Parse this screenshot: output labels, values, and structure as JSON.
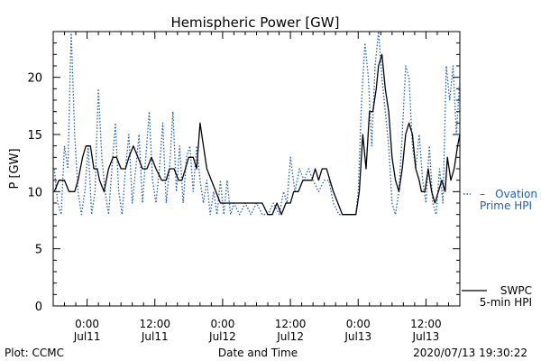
{
  "chart_data": {
    "type": "line",
    "title": "Hemispheric Power [GW]",
    "ylabel": "P [GW]",
    "xlabel": "Date and Time",
    "ylim": [
      0,
      24
    ],
    "xlim": [
      -3,
      33
    ],
    "y_ticks": [
      0,
      5,
      10,
      15,
      20
    ],
    "x_ticks": [
      {
        "x": 0,
        "line1": "0:00",
        "line2": "Jul11"
      },
      {
        "x": 6,
        "line1": "12:00",
        "line2": "Jul11"
      },
      {
        "x": 12,
        "line1": "0:00",
        "line2": "Jul12"
      },
      {
        "x": 18,
        "line1": "12:00",
        "line2": "Jul12"
      },
      {
        "x": 24,
        "line1": "0:00",
        "line2": "Jul13"
      },
      {
        "x": 30,
        "line1": "12:00",
        "line2": "Jul13"
      }
    ],
    "x_unit": "hours since 0:00 Jul11",
    "series": [
      {
        "name": "SWPC 5-min HPI",
        "color": "#000000",
        "style": "solid",
        "points": [
          [
            -2.9,
            10
          ],
          [
            -2.5,
            11
          ],
          [
            -2.0,
            11
          ],
          [
            -1.6,
            10
          ],
          [
            -1.1,
            10
          ],
          [
            -0.8,
            11
          ],
          [
            -0.4,
            13
          ],
          [
            -0.1,
            14
          ],
          [
            0.3,
            14
          ],
          [
            0.6,
            12
          ],
          [
            0.9,
            12
          ],
          [
            1.1,
            11
          ],
          [
            1.5,
            10
          ],
          [
            1.9,
            12
          ],
          [
            2.3,
            13
          ],
          [
            2.6,
            13
          ],
          [
            3.0,
            12
          ],
          [
            3.4,
            12
          ],
          [
            3.7,
            13
          ],
          [
            4.1,
            14
          ],
          [
            4.5,
            13
          ],
          [
            4.9,
            12
          ],
          [
            5.3,
            12
          ],
          [
            5.7,
            13
          ],
          [
            6.1,
            12
          ],
          [
            6.6,
            11
          ],
          [
            7.0,
            11
          ],
          [
            7.3,
            12
          ],
          [
            7.7,
            12
          ],
          [
            8.1,
            11
          ],
          [
            8.4,
            11
          ],
          [
            8.7,
            12
          ],
          [
            9.0,
            13
          ],
          [
            9.4,
            13
          ],
          [
            9.7,
            12
          ],
          [
            10.0,
            16
          ],
          [
            10.3,
            14
          ],
          [
            10.6,
            12
          ],
          [
            11.0,
            11
          ],
          [
            11.4,
            10
          ],
          [
            11.8,
            9
          ],
          [
            12.5,
            9
          ],
          [
            13.5,
            9
          ],
          [
            14.5,
            9
          ],
          [
            15.5,
            9
          ],
          [
            16.0,
            8
          ],
          [
            16.4,
            8
          ],
          [
            16.8,
            9
          ],
          [
            17.2,
            8
          ],
          [
            17.6,
            9
          ],
          [
            18.0,
            9
          ],
          [
            18.3,
            10
          ],
          [
            18.7,
            10
          ],
          [
            19.1,
            11
          ],
          [
            19.5,
            11
          ],
          [
            19.9,
            11
          ],
          [
            20.2,
            12
          ],
          [
            20.5,
            11
          ],
          [
            20.8,
            12
          ],
          [
            21.2,
            12
          ],
          [
            21.5,
            11
          ],
          [
            21.8,
            10
          ],
          [
            22.2,
            9
          ],
          [
            22.6,
            8
          ],
          [
            23.0,
            8
          ],
          [
            23.4,
            8
          ],
          [
            23.8,
            8
          ],
          [
            24.1,
            10
          ],
          [
            24.4,
            15
          ],
          [
            24.7,
            12
          ],
          [
            25.0,
            17
          ],
          [
            25.3,
            17
          ],
          [
            25.6,
            19
          ],
          [
            25.8,
            21
          ],
          [
            26.1,
            22
          ],
          [
            26.4,
            19
          ],
          [
            26.7,
            17
          ],
          [
            27.0,
            13
          ],
          [
            27.3,
            11
          ],
          [
            27.6,
            10
          ],
          [
            27.9,
            12
          ],
          [
            28.2,
            15
          ],
          [
            28.5,
            16
          ],
          [
            28.8,
            15
          ],
          [
            29.1,
            12
          ],
          [
            29.4,
            11
          ],
          [
            29.6,
            10
          ],
          [
            29.9,
            10
          ],
          [
            30.2,
            12
          ],
          [
            30.5,
            10
          ],
          [
            30.8,
            9
          ],
          [
            31.1,
            10
          ],
          [
            31.4,
            11
          ],
          [
            31.7,
            10
          ],
          [
            31.9,
            13
          ],
          [
            32.2,
            11
          ],
          [
            32.5,
            12
          ],
          [
            32.8,
            14
          ],
          [
            33.0,
            15
          ]
        ]
      },
      {
        "name": "Ovation Prime HPI",
        "color": "#1f5fb0",
        "style": "dotted",
        "points": [
          [
            -2.9,
            12
          ],
          [
            -2.6,
            9
          ],
          [
            -2.3,
            8
          ],
          [
            -2.0,
            14
          ],
          [
            -1.7,
            12
          ],
          [
            -1.4,
            24
          ],
          [
            -1.1,
            15
          ],
          [
            -0.8,
            10
          ],
          [
            -0.5,
            8
          ],
          [
            -0.2,
            10
          ],
          [
            0.1,
            14
          ],
          [
            0.4,
            8
          ],
          [
            0.7,
            10
          ],
          [
            1.0,
            19
          ],
          [
            1.3,
            13
          ],
          [
            1.6,
            10
          ],
          [
            1.9,
            8
          ],
          [
            2.2,
            12
          ],
          [
            2.5,
            16
          ],
          [
            2.8,
            10
          ],
          [
            3.1,
            8
          ],
          [
            3.4,
            12
          ],
          [
            3.7,
            15
          ],
          [
            4.0,
            9
          ],
          [
            4.3,
            12
          ],
          [
            4.6,
            15
          ],
          [
            4.9,
            9
          ],
          [
            5.2,
            13
          ],
          [
            5.5,
            17
          ],
          [
            5.8,
            11
          ],
          [
            6.1,
            9
          ],
          [
            6.4,
            12
          ],
          [
            6.7,
            16
          ],
          [
            7.0,
            9
          ],
          [
            7.3,
            12
          ],
          [
            7.6,
            17
          ],
          [
            7.9,
            10
          ],
          [
            8.2,
            14
          ],
          [
            8.5,
            9
          ],
          [
            8.8,
            13
          ],
          [
            9.1,
            14
          ],
          [
            9.4,
            10
          ],
          [
            9.7,
            14
          ],
          [
            10.0,
            11
          ],
          [
            10.3,
            9
          ],
          [
            10.6,
            11
          ],
          [
            10.9,
            8
          ],
          [
            11.2,
            10
          ],
          [
            11.5,
            8
          ],
          [
            11.8,
            11
          ],
          [
            12.1,
            8
          ],
          [
            12.4,
            11
          ],
          [
            12.7,
            8
          ],
          [
            13.0,
            9
          ],
          [
            13.5,
            8
          ],
          [
            14.0,
            9
          ],
          [
            14.5,
            8
          ],
          [
            15.0,
            9
          ],
          [
            15.5,
            8
          ],
          [
            16.0,
            8
          ],
          [
            16.5,
            9
          ],
          [
            17.0,
            8
          ],
          [
            17.4,
            10
          ],
          [
            17.7,
            9
          ],
          [
            18.0,
            13
          ],
          [
            18.4,
            10
          ],
          [
            18.8,
            12
          ],
          [
            19.2,
            11
          ],
          [
            19.6,
            12
          ],
          [
            20.0,
            11
          ],
          [
            20.5,
            10
          ],
          [
            21.0,
            11
          ],
          [
            21.4,
            11
          ],
          [
            21.8,
            9
          ],
          [
            22.3,
            8
          ],
          [
            22.8,
            8
          ],
          [
            23.3,
            8
          ],
          [
            23.8,
            8
          ],
          [
            24.0,
            10
          ],
          [
            24.3,
            18
          ],
          [
            24.6,
            23
          ],
          [
            24.9,
            20
          ],
          [
            25.2,
            14
          ],
          [
            25.5,
            21
          ],
          [
            25.8,
            24
          ],
          [
            26.1,
            20
          ],
          [
            26.4,
            17
          ],
          [
            26.7,
            14
          ],
          [
            27.0,
            9
          ],
          [
            27.3,
            8
          ],
          [
            27.6,
            10
          ],
          [
            27.9,
            15
          ],
          [
            28.2,
            21
          ],
          [
            28.5,
            20
          ],
          [
            28.8,
            14
          ],
          [
            29.1,
            12
          ],
          [
            29.4,
            15
          ],
          [
            29.7,
            11
          ],
          [
            30.0,
            9
          ],
          [
            30.3,
            14
          ],
          [
            30.6,
            9
          ],
          [
            30.9,
            8
          ],
          [
            31.2,
            12
          ],
          [
            31.5,
            9
          ],
          [
            31.8,
            21
          ],
          [
            32.1,
            18
          ],
          [
            32.4,
            21
          ],
          [
            32.7,
            15
          ],
          [
            33.0,
            20
          ]
        ]
      }
    ],
    "legend": {
      "ovation_line1": "Ovation",
      "ovation_line2": "Prime HPI",
      "swpc_line1": "SWPC",
      "swpc_line2": "5-min HPI"
    },
    "footer": {
      "left": "Plot: CCMC",
      "right": "2020/07/13 19:30:22"
    }
  }
}
